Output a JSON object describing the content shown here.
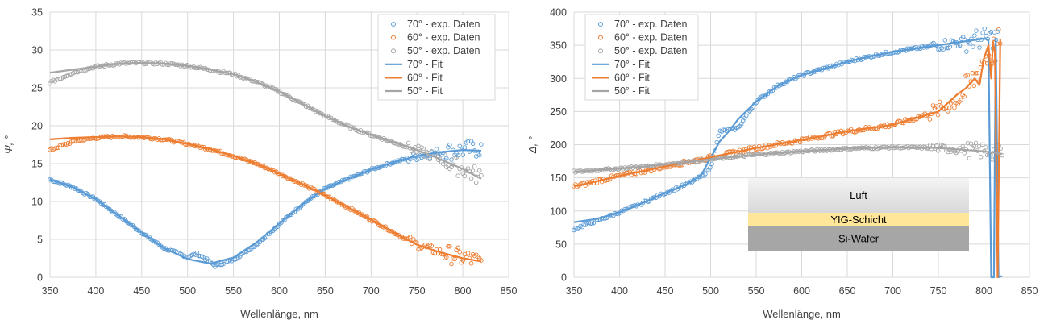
{
  "chart_data": [
    {
      "type": "scatter",
      "xlabel": "Wellenlänge, nm",
      "ylabel": "Ψ, °",
      "xlim": [
        350,
        850
      ],
      "ylim": [
        0,
        35
      ],
      "xticks": [
        350,
        400,
        450,
        500,
        550,
        600,
        650,
        700,
        750,
        800,
        850
      ],
      "yticks": [
        0,
        5,
        10,
        15,
        20,
        25,
        30,
        35
      ],
      "grid": true,
      "legend_position": "top-right",
      "series": [
        {
          "name": "70° - exp. Daten",
          "kind": "markers",
          "color": "#5B9BD5",
          "x": [
            350,
            375,
            400,
            425,
            450,
            475,
            500,
            510,
            520,
            530,
            540,
            550,
            575,
            600,
            625,
            650,
            675,
            700,
            725,
            750,
            775,
            800,
            820
          ],
          "y": [
            12.9,
            11.9,
            10.3,
            8.1,
            5.9,
            3.8,
            2.7,
            3.1,
            2.4,
            1.5,
            1.9,
            2.3,
            4.3,
            7.0,
            9.6,
            11.7,
            13.0,
            14.2,
            15.2,
            16.0,
            16.5,
            16.8,
            17.0
          ],
          "noise": 0.15
        },
        {
          "name": "60° - exp. Daten",
          "kind": "markers",
          "color": "#ED7D31",
          "x": [
            350,
            375,
            400,
            425,
            450,
            475,
            500,
            525,
            550,
            575,
            600,
            625,
            650,
            675,
            700,
            725,
            750,
            775,
            800,
            820
          ],
          "y": [
            16.8,
            17.9,
            18.4,
            18.6,
            18.5,
            18.2,
            17.6,
            16.9,
            16.0,
            15.0,
            13.7,
            12.3,
            10.8,
            9.2,
            7.6,
            5.9,
            4.3,
            3.3,
            2.6,
            2.0
          ],
          "noise": 0.15
        },
        {
          "name": "50° - exp. Daten",
          "kind": "markers",
          "color": "#A5A5A5",
          "x": [
            350,
            375,
            400,
            425,
            450,
            475,
            500,
            525,
            550,
            575,
            600,
            625,
            650,
            675,
            700,
            725,
            750,
            775,
            800,
            820
          ],
          "y": [
            25.7,
            27.0,
            27.8,
            28.2,
            28.3,
            28.2,
            27.9,
            27.4,
            26.8,
            25.8,
            24.5,
            22.9,
            21.3,
            19.9,
            18.8,
            17.8,
            16.8,
            15.6,
            14.3,
            13.2
          ],
          "noise": 0.15
        },
        {
          "name": "70° - Fit",
          "kind": "line",
          "color": "#5B9BD5",
          "x": [
            350,
            375,
            400,
            425,
            450,
            475,
            500,
            525,
            550,
            575,
            600,
            625,
            650,
            675,
            700,
            725,
            750,
            775,
            800,
            820
          ],
          "y": [
            12.9,
            11.9,
            10.3,
            8.1,
            5.9,
            3.8,
            2.4,
            1.8,
            2.6,
            4.6,
            7.1,
            9.6,
            11.7,
            13.0,
            14.2,
            15.2,
            16.0,
            16.5,
            16.8,
            16.7
          ]
        },
        {
          "name": "60° - Fit",
          "kind": "line",
          "color": "#ED7D31",
          "x": [
            350,
            375,
            400,
            425,
            450,
            475,
            500,
            525,
            550,
            575,
            600,
            625,
            650,
            675,
            700,
            725,
            750,
            775,
            800,
            820
          ],
          "y": [
            18.2,
            18.4,
            18.5,
            18.6,
            18.5,
            18.2,
            17.6,
            16.9,
            16.0,
            15.0,
            13.7,
            12.3,
            10.8,
            9.2,
            7.6,
            5.9,
            4.3,
            3.3,
            2.5,
            2.1
          ]
        },
        {
          "name": "50° - Fit",
          "kind": "line",
          "color": "#A5A5A5",
          "x": [
            350,
            375,
            400,
            425,
            450,
            475,
            500,
            525,
            550,
            575,
            600,
            625,
            650,
            675,
            700,
            725,
            750,
            775,
            800,
            820
          ],
          "y": [
            27.0,
            27.4,
            27.8,
            28.2,
            28.3,
            28.2,
            27.9,
            27.4,
            26.8,
            25.8,
            24.5,
            22.9,
            21.3,
            19.9,
            18.8,
            17.8,
            16.8,
            15.6,
            14.3,
            13.0
          ]
        }
      ]
    },
    {
      "type": "scatter",
      "xlabel": "Wellenlänge, nm",
      "ylabel": "Δ, °",
      "xlim": [
        350,
        850
      ],
      "ylim": [
        0,
        400
      ],
      "xticks": [
        350,
        400,
        450,
        500,
        550,
        600,
        650,
        700,
        750,
        800,
        850
      ],
      "yticks": [
        0,
        50,
        100,
        150,
        200,
        250,
        300,
        350,
        400
      ],
      "grid": true,
      "legend_position": "top-left",
      "series": [
        {
          "name": "70° - exp. Daten",
          "kind": "markers",
          "color": "#5B9BD5",
          "x": [
            350,
            375,
            400,
            425,
            450,
            475,
            490,
            500,
            510,
            520,
            530,
            550,
            575,
            600,
            625,
            650,
            675,
            700,
            725,
            750,
            775,
            800,
            815
          ],
          "y": [
            73,
            85,
            98,
            112,
            127,
            141,
            152,
            165,
            220,
            222,
            225,
            265,
            290,
            305,
            315,
            325,
            333,
            340,
            345,
            350,
            355,
            360,
            361
          ],
          "noise": 2
        },
        {
          "name": "60° - exp. Daten",
          "kind": "markers",
          "color": "#ED7D31",
          "x": [
            350,
            400,
            450,
            500,
            550,
            600,
            650,
            700,
            725,
            750,
            775,
            790,
            800,
            810,
            818
          ],
          "y": [
            137,
            153,
            167,
            181,
            195,
            207,
            220,
            230,
            240,
            252,
            270,
            300,
            330,
            340,
            355
          ],
          "noise": 3
        },
        {
          "name": "50° - exp. Daten",
          "kind": "markers",
          "color": "#A5A5A5",
          "x": [
            350,
            400,
            450,
            500,
            550,
            600,
            650,
            700,
            750,
            800,
            820
          ],
          "y": [
            159,
            164,
            170,
            178,
            185,
            190,
            194,
            196,
            195,
            190,
            186
          ],
          "noise": 1.5
        },
        {
          "name": "70° - Fit",
          "kind": "line",
          "color": "#5B9BD5",
          "x": [
            350,
            375,
            400,
            425,
            450,
            475,
            490,
            500,
            510,
            520,
            530,
            550,
            575,
            600,
            625,
            650,
            675,
            700,
            725,
            750,
            775,
            800,
            805,
            808,
            811,
            813,
            816,
            820
          ],
          "y": [
            83,
            88,
            98,
            112,
            127,
            141,
            155,
            180,
            205,
            220,
            238,
            265,
            290,
            305,
            315,
            325,
            333,
            340,
            345,
            350,
            355,
            360,
            358,
            0,
            0,
            360,
            0,
            2
          ]
        },
        {
          "name": "60° - Fit",
          "kind": "line",
          "color": "#ED7D31",
          "x": [
            350,
            400,
            450,
            500,
            550,
            600,
            650,
            700,
            725,
            750,
            770,
            780,
            790,
            795,
            800,
            805,
            808,
            810,
            812,
            815,
            818
          ],
          "y": [
            137,
            153,
            167,
            181,
            195,
            207,
            220,
            230,
            240,
            250,
            275,
            285,
            300,
            290,
            330,
            350,
            300,
            355,
            340,
            0,
            360
          ]
        },
        {
          "name": "50° - Fit",
          "kind": "line",
          "color": "#A5A5A5",
          "x": [
            350,
            400,
            450,
            500,
            550,
            600,
            650,
            700,
            750,
            800,
            820
          ],
          "y": [
            159,
            164,
            170,
            178,
            185,
            190,
            194,
            196,
            195,
            190,
            186
          ]
        }
      ],
      "inset_layers": [
        {
          "label": "Luft",
          "color_top": "#F4F4F4",
          "color_bottom": "#D8D8D8"
        },
        {
          "label": "YIG-Schicht",
          "color_top": "#FFE699",
          "color_bottom": "#FFE699"
        },
        {
          "label": "Si-Wafer",
          "color_top": "#A6A6A6",
          "color_bottom": "#A6A6A6"
        }
      ]
    }
  ]
}
